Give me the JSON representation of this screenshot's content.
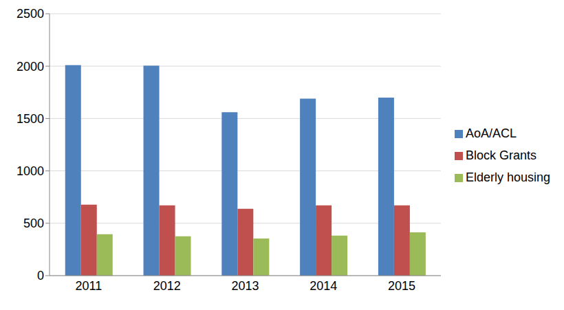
{
  "chart_data": {
    "type": "bar",
    "categories": [
      "2011",
      "2012",
      "2013",
      "2014",
      "2015"
    ],
    "series": [
      {
        "name": "AoA/ACL",
        "color": "#4f81bd",
        "values": [
          2010,
          2005,
          1560,
          1690,
          1700
        ]
      },
      {
        "name": "Block Grants",
        "color": "#c0504d",
        "values": [
          678,
          671,
          638,
          671,
          671
        ]
      },
      {
        "name": "Elderly housing",
        "color": "#9bbb59",
        "values": [
          395,
          375,
          355,
          382,
          414
        ]
      }
    ],
    "ylim": [
      0,
      2500
    ],
    "yticks": [
      0,
      500,
      1000,
      1500,
      2000,
      2500
    ],
    "grid": true,
    "legend": "right"
  }
}
